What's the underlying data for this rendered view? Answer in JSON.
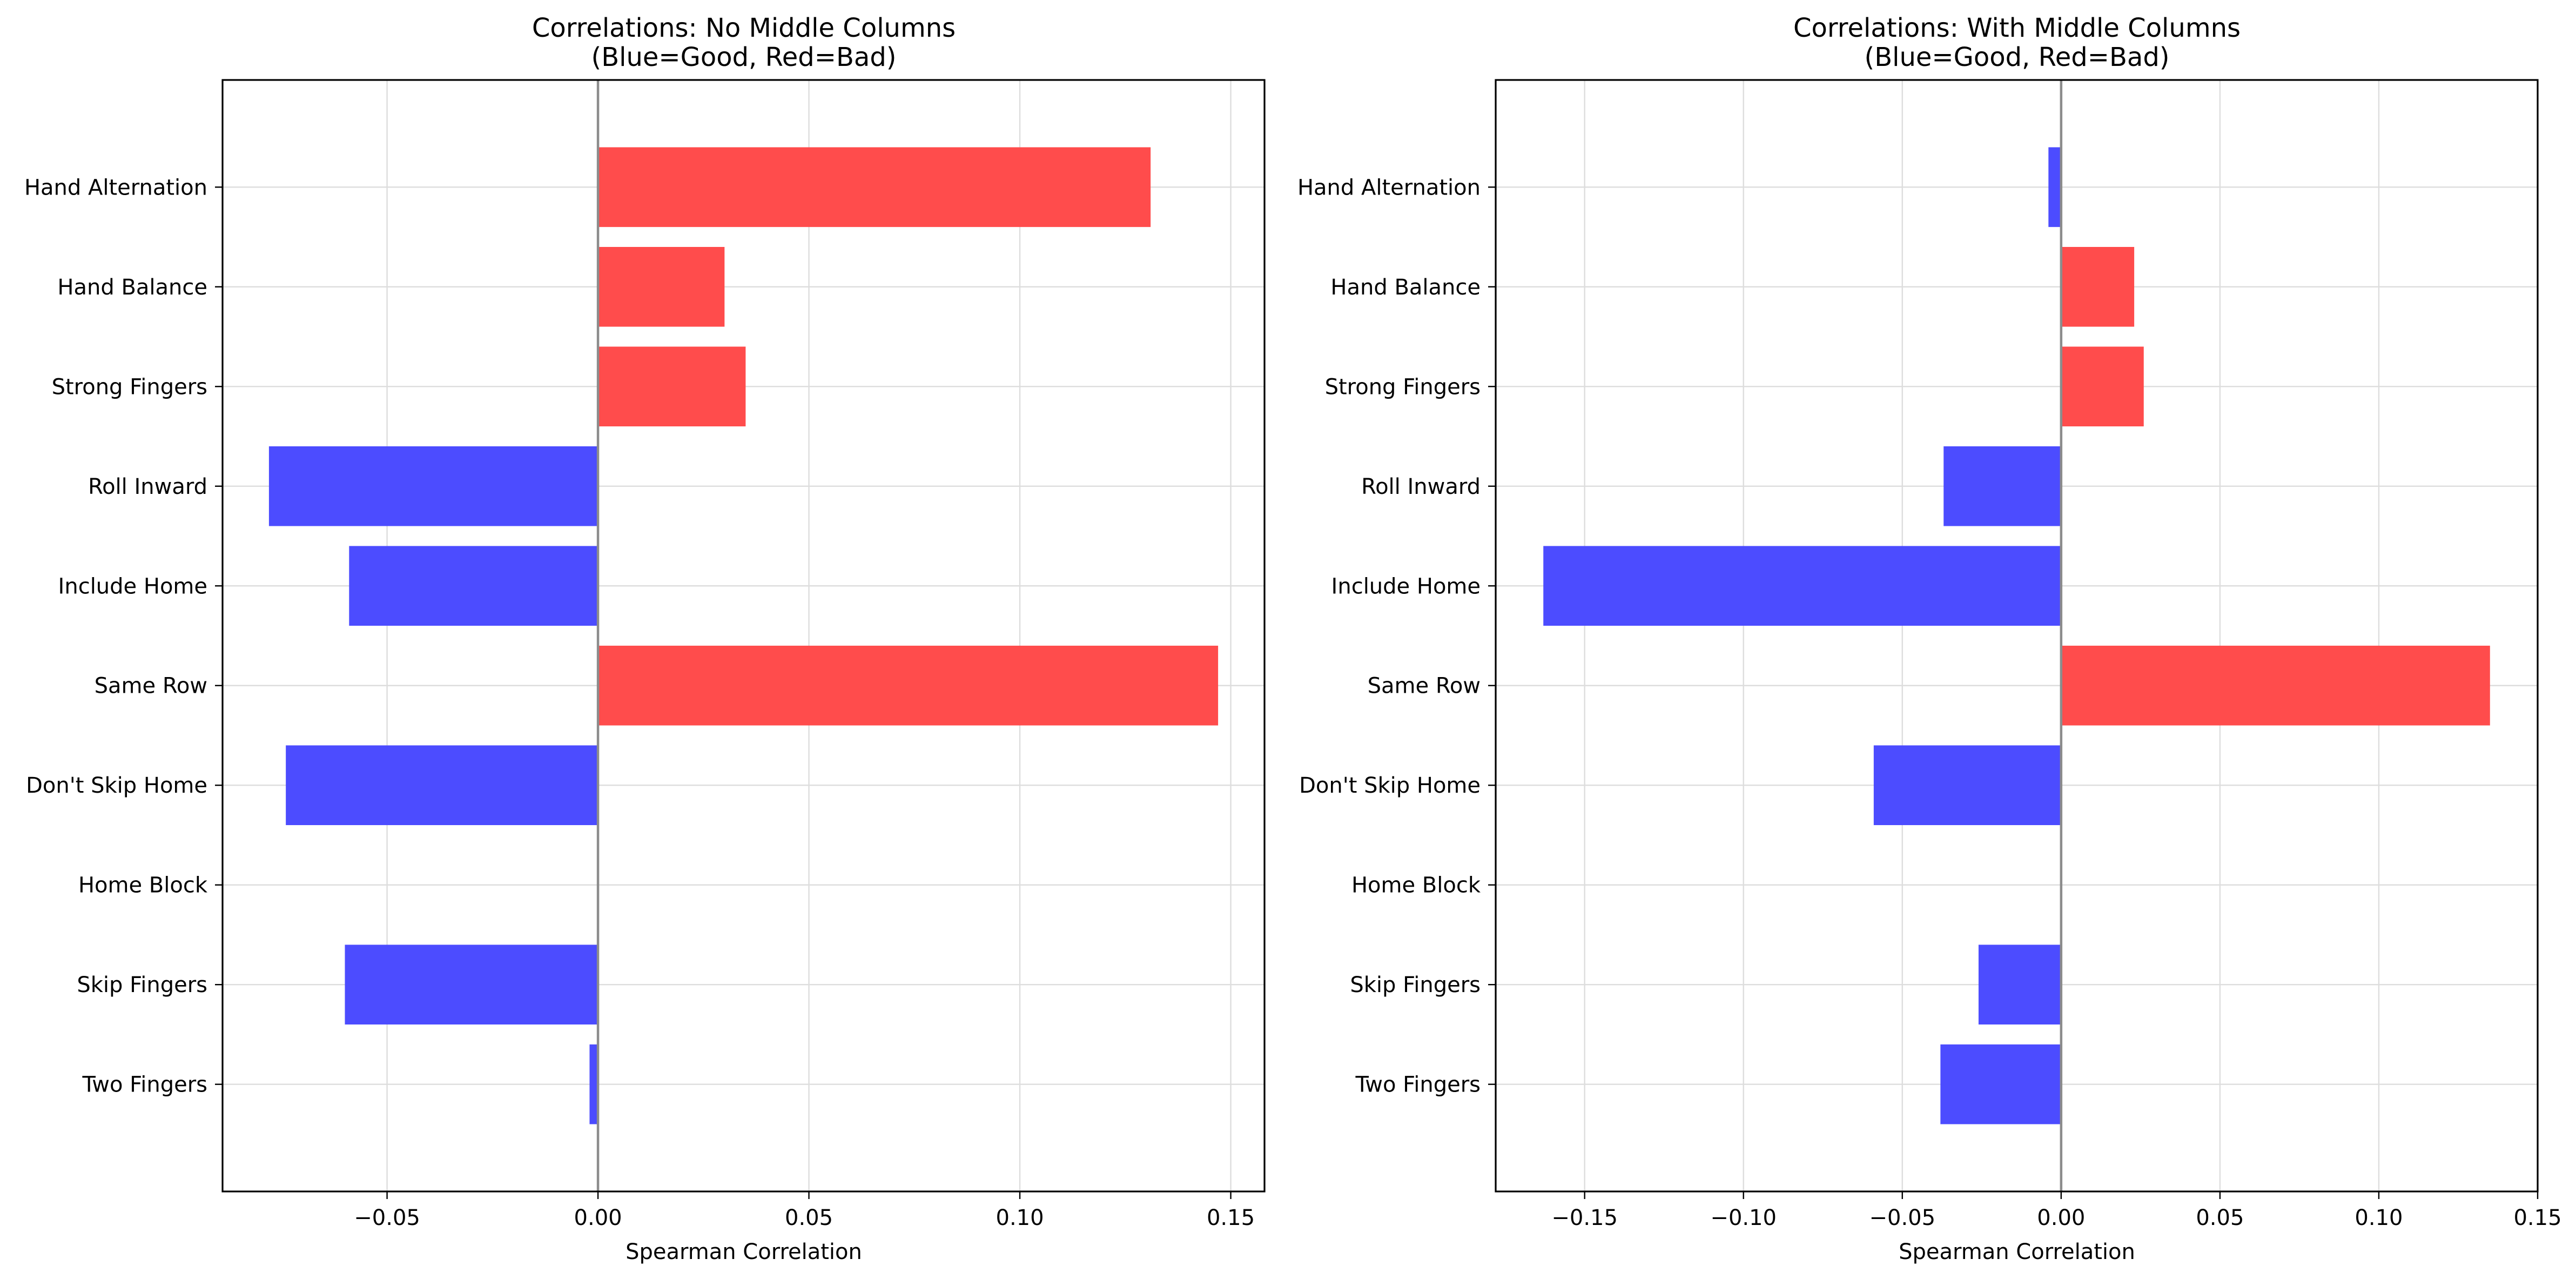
{
  "chart_data": [
    {
      "type": "bar",
      "orientation": "horizontal",
      "title": "Correlations: No Middle Columns\n(Blue=Good, Red=Bad)",
      "xlabel": "Spearman Correlation",
      "ylabel": "",
      "categories": [
        "Hand Alternation",
        "Hand Balance",
        "Strong Fingers",
        "Roll Inward",
        "Include Home",
        "Same Row",
        "Don't Skip Home",
        "Home Block",
        "Skip Fingers",
        "Two Fingers"
      ],
      "values": [
        0.131,
        0.03,
        0.035,
        -0.078,
        -0.059,
        0.147,
        -0.074,
        0.0,
        -0.06,
        -0.002
      ],
      "xlim": [
        -0.089,
        0.158
      ],
      "xticks": [
        -0.05,
        0.0,
        0.05,
        0.1,
        0.15
      ],
      "xtick_labels": [
        "−0.05",
        "0.00",
        "0.05",
        "0.10",
        "0.15"
      ],
      "grid": true,
      "legend": "none",
      "colors": {
        "good": "#4c4cff",
        "bad": "#ff4c4c"
      }
    },
    {
      "type": "bar",
      "orientation": "horizontal",
      "title": "Correlations: With Middle Columns\n(Blue=Good, Red=Bad)",
      "xlabel": "Spearman Correlation",
      "ylabel": "",
      "categories": [
        "Hand Alternation",
        "Hand Balance",
        "Strong Fingers",
        "Roll Inward",
        "Include Home",
        "Same Row",
        "Don't Skip Home",
        "Home Block",
        "Skip Fingers",
        "Two Fingers"
      ],
      "values": [
        -0.004,
        0.023,
        0.026,
        -0.037,
        -0.163,
        0.135,
        -0.059,
        0.0,
        -0.026,
        -0.038
      ],
      "xlim": [
        -0.178,
        0.15
      ],
      "xticks": [
        -0.15,
        -0.1,
        -0.05,
        0.0,
        0.05,
        0.1,
        0.15
      ],
      "xtick_labels": [
        "−0.15",
        "−0.10",
        "−0.05",
        "0.00",
        "0.05",
        "0.10",
        "0.15"
      ],
      "grid": true,
      "legend": "none",
      "colors": {
        "good": "#4c4cff",
        "bad": "#ff4c4c"
      }
    }
  ]
}
